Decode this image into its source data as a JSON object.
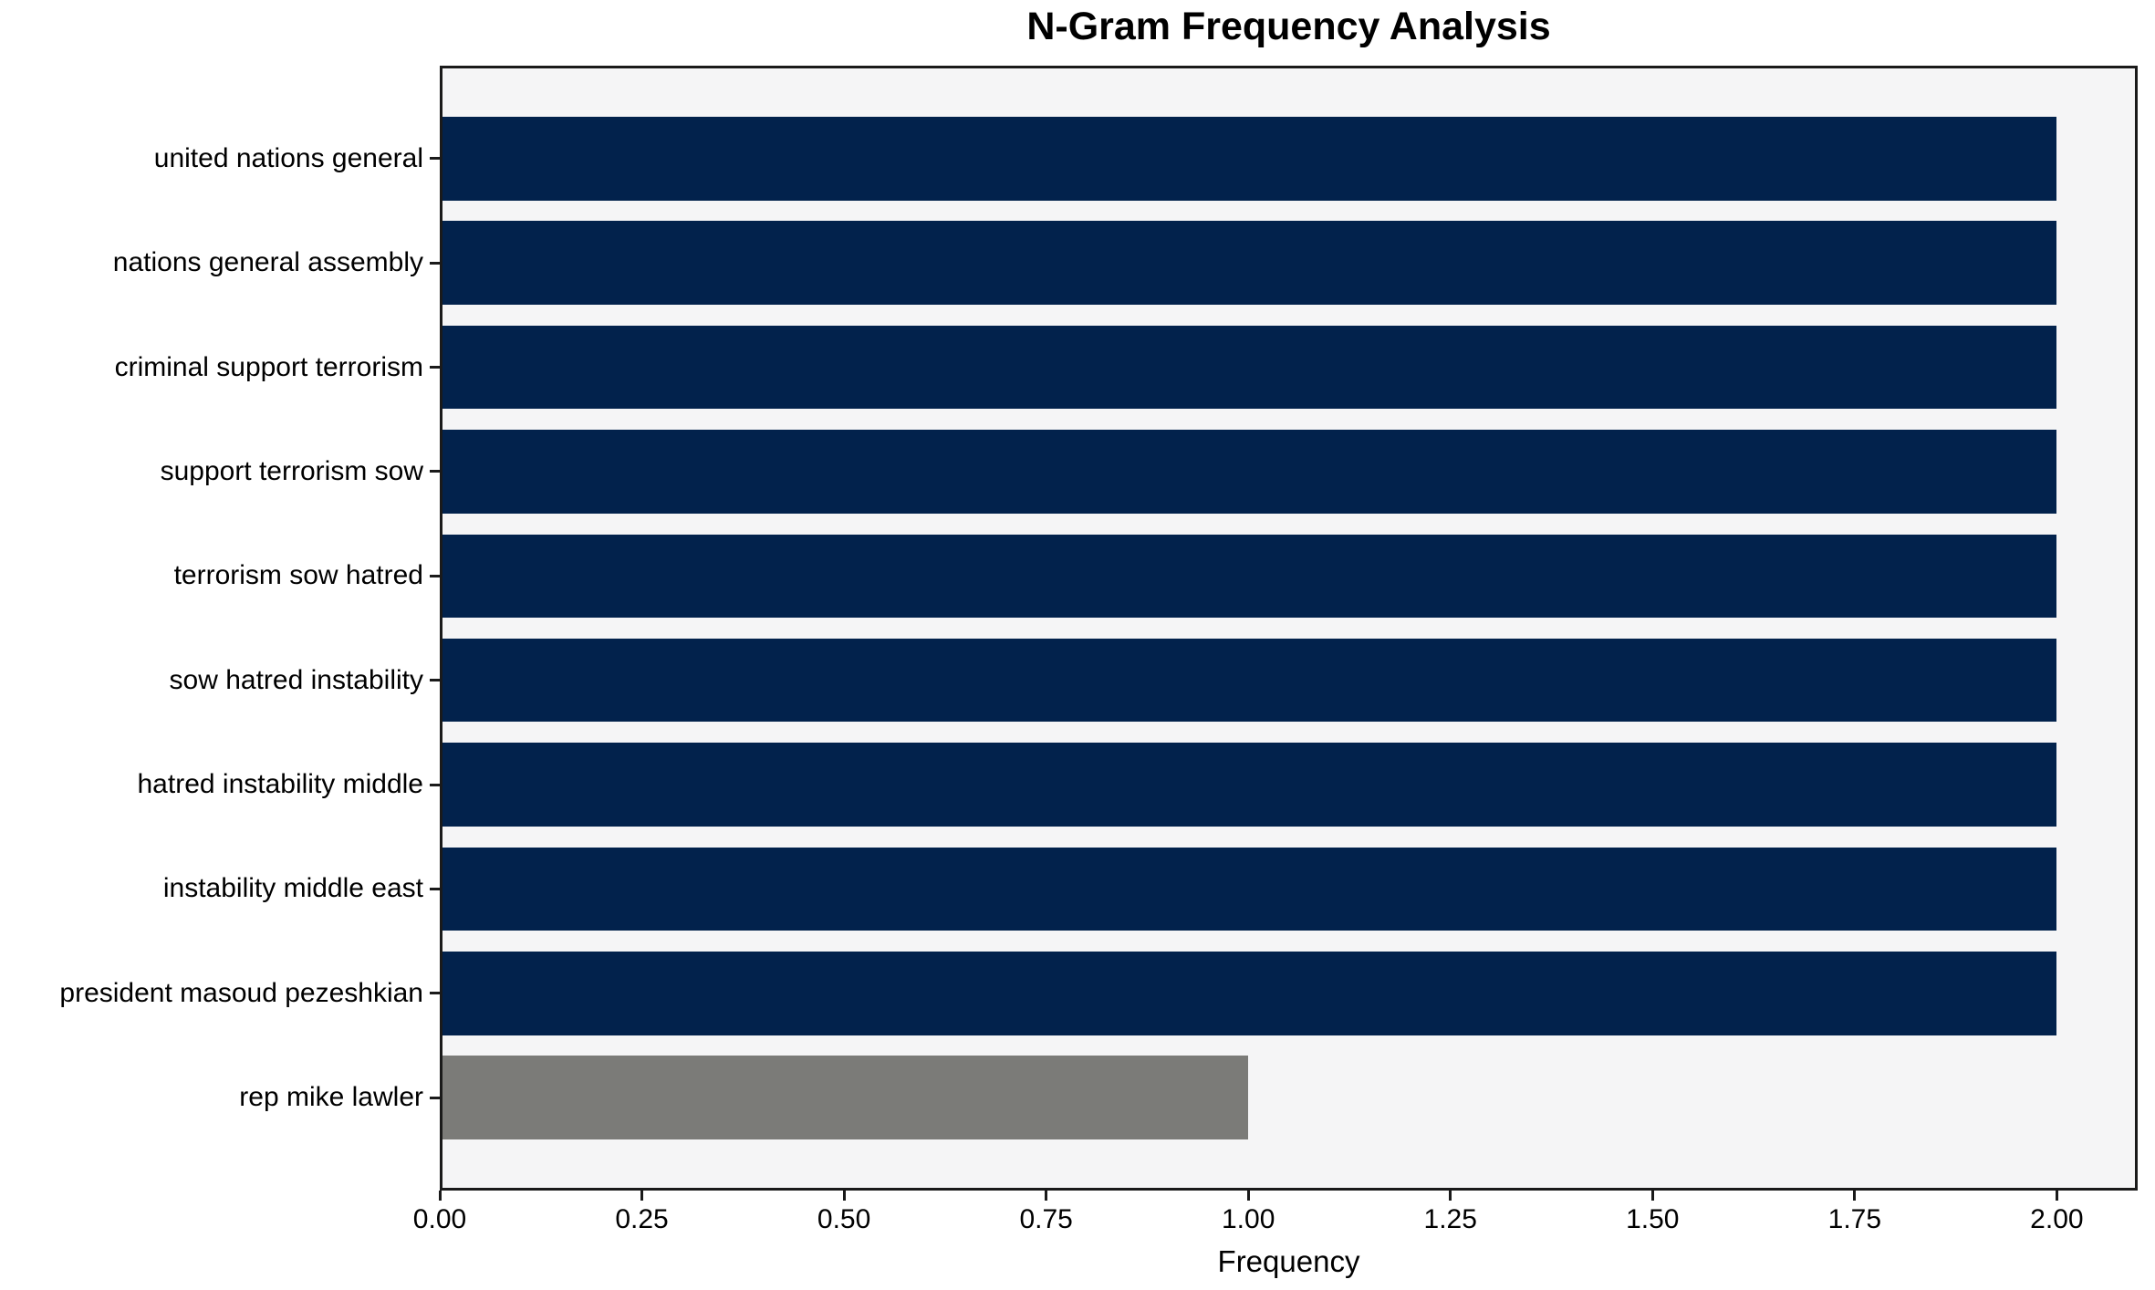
{
  "chart_data": {
    "type": "bar",
    "orientation": "horizontal",
    "title": "N-Gram Frequency Analysis",
    "xlabel": "Frequency",
    "ylabel": "",
    "categories": [
      "united nations general",
      "nations general assembly",
      "criminal support terrorism",
      "support terrorism sow",
      "terrorism sow hatred",
      "sow hatred instability",
      "hatred instability middle",
      "instability middle east",
      "president masoud pezeshkian",
      "rep mike lawler"
    ],
    "values": [
      2,
      2,
      2,
      2,
      2,
      2,
      2,
      2,
      2,
      1
    ],
    "bar_colors": [
      "#02224c",
      "#02224c",
      "#02224c",
      "#02224c",
      "#02224c",
      "#02224c",
      "#02224c",
      "#02224c",
      "#02224c",
      "#7b7b78"
    ],
    "xlim": [
      0,
      2.1
    ],
    "xticks": [
      "0.00",
      "0.25",
      "0.50",
      "0.75",
      "1.00",
      "1.25",
      "1.50",
      "1.75",
      "2.00"
    ],
    "xtick_values": [
      0,
      0.25,
      0.5,
      0.75,
      1.0,
      1.25,
      1.5,
      1.75,
      2.0
    ],
    "bar_height_fraction": 0.8,
    "grid": false,
    "legend": null,
    "colors": {
      "plot_background": "#f5f5f6",
      "figure_background": "#ffffff",
      "spine": "#1a1a1a",
      "text": "#000000"
    }
  }
}
